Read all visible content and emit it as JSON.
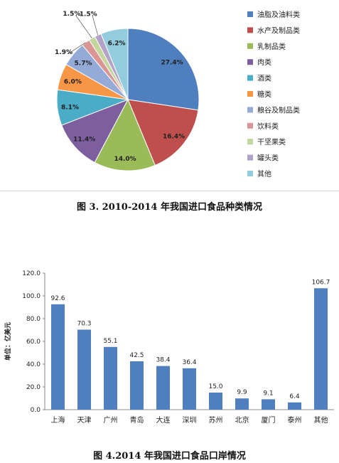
{
  "chart_data": [
    {
      "type": "pie",
      "title": "图 3. 2010-2014 年我国进口食品种类情况",
      "categories": [
        "油脂及油料类",
        "水产及制品类",
        "乳制品类",
        "肉类",
        "酒类",
        "糖类",
        "粮谷及制品类",
        "饮料类",
        "干坚果类",
        "罐头类",
        "其他"
      ],
      "values": [
        27.4,
        16.4,
        14.0,
        11.4,
        8.1,
        6.0,
        5.7,
        1.9,
        1.5,
        1.5,
        6.2
      ],
      "value_labels": [
        "27.4%",
        "16.4%",
        "14.0%",
        "11.4%",
        "8.1%",
        "6.0%",
        "5.7%",
        "1.9%",
        "1.5%",
        "1.5%",
        "6.2%"
      ],
      "colors": [
        "#4f7fbe",
        "#bf4f4c",
        "#9bbb59",
        "#7d5f9f",
        "#4aacc6",
        "#f79646",
        "#94abd8",
        "#d99694",
        "#c3d69b",
        "#b3a2c7",
        "#93cddd"
      ],
      "legend_position": "right"
    },
    {
      "type": "bar",
      "title": "图 4.2014 年我国进口食品口岸情况",
      "ylabel": "单位：亿美元",
      "categories": [
        "上海",
        "天津",
        "广州",
        "青岛",
        "大连",
        "深圳",
        "苏州",
        "北京",
        "厦门",
        "泰州",
        "其他"
      ],
      "values": [
        92.6,
        70.3,
        55.1,
        42.5,
        38.4,
        36.4,
        15.0,
        9.9,
        9.1,
        6.4,
        106.7
      ],
      "value_labels": [
        "92.6",
        "70.3",
        "55.1",
        "42.5",
        "38.4",
        "36.4",
        "15.0",
        "9.9",
        "9.1",
        "6.4",
        "106.7"
      ],
      "yticks": [
        "0.0",
        "20.0",
        "40.0",
        "60.0",
        "80.0",
        "100.0",
        "120.0"
      ],
      "ylim": [
        0,
        120
      ],
      "bar_color": "#4f7fbe",
      "grid": false
    }
  ]
}
